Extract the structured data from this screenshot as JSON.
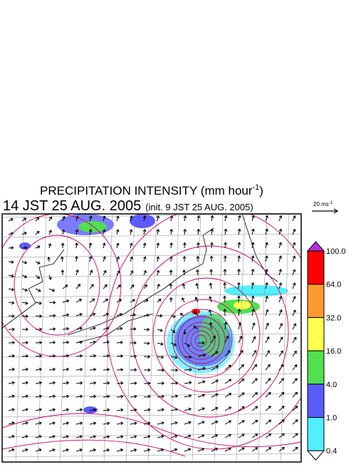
{
  "header": {
    "title": "PRECIPITATION INTENSITY (mm hour",
    "title_exponent": "-1",
    "title_close": ")",
    "time": "14 JST 25 AUG. 2005",
    "init": "(init. 9 JST 25 AUG. 2005)"
  },
  "vector_scale": {
    "label": "20 ms",
    "exponent": "-1"
  },
  "colorbar": {
    "labels": [
      "100.0",
      "64.0",
      "32.0",
      "16.0",
      "4.0",
      "1.0",
      "0.4"
    ],
    "over_color": "#b030e0",
    "colors": [
      "#ff0000",
      "#ff9a30",
      "#ffff50",
      "#50e050",
      "#5a5aff",
      "#50f0ff"
    ],
    "under_color": "#ffffff"
  }
}
